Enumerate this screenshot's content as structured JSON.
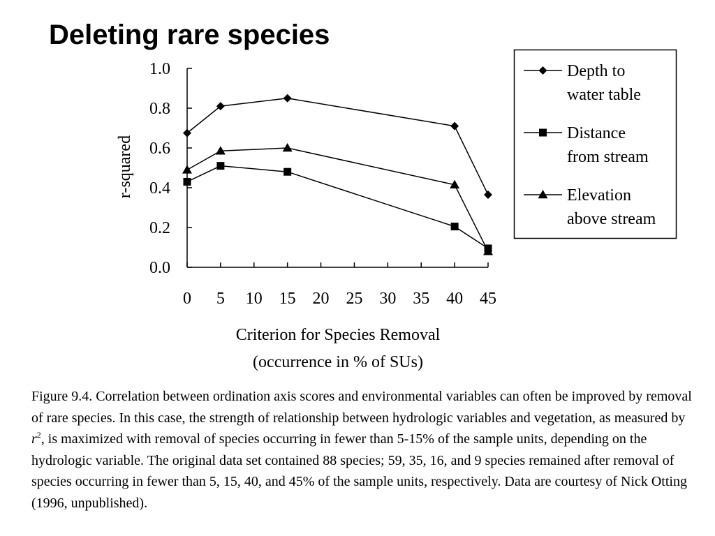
{
  "title": "Deleting rare species",
  "chart_data": {
    "type": "line",
    "x": [
      0,
      5,
      15,
      40,
      45
    ],
    "xticks": [
      "0",
      "5",
      "10",
      "15",
      "20",
      "25",
      "30",
      "35",
      "40",
      "45"
    ],
    "yticks": [
      "0.0",
      "0.2",
      "0.4",
      "0.6",
      "0.8",
      "1.0"
    ],
    "ylim": [
      0,
      1.0
    ],
    "xlim": [
      0,
      45
    ],
    "ylabel": "r-squared",
    "xlabel_line1": "Criterion for Species Removal",
    "xlabel_line2": "(occurrence in % of SUs)",
    "grid": false,
    "legend_position": "right",
    "series": [
      {
        "name_line1": "Depth to",
        "name_line2": "water table",
        "marker": "diamond",
        "values": [
          0.675,
          0.81,
          0.85,
          0.71,
          0.365
        ]
      },
      {
        "name_line1": "Distance",
        "name_line2": "from stream",
        "marker": "square",
        "values": [
          0.43,
          0.51,
          0.48,
          0.205,
          0.095
        ]
      },
      {
        "name_line1": "Elevation",
        "name_line2": "above stream",
        "marker": "triangle",
        "values": [
          0.49,
          0.585,
          0.6,
          0.415,
          0.08
        ]
      }
    ]
  },
  "caption": {
    "text_before": "Figure 9.4.  Correlation between ordination axis scores and environmental variables can often be improved by removal of rare species.  In this case, the strength of relationship between hydrologic variables and vegetation, as measured by ",
    "italic": "r",
    "sup": "2",
    "text_after": ", is maximized with removal of species occurring in fewer than 5-15% of the sample units, depending on the hydrologic variable.  The original data set contained 88 species; 59, 35, 16, and 9 species remained after removal of species occurring in fewer than 5, 15, 40, and 45% of the sample units, respectively.  Data are courtesy of Nick Otting (1996, unpublished)."
  }
}
